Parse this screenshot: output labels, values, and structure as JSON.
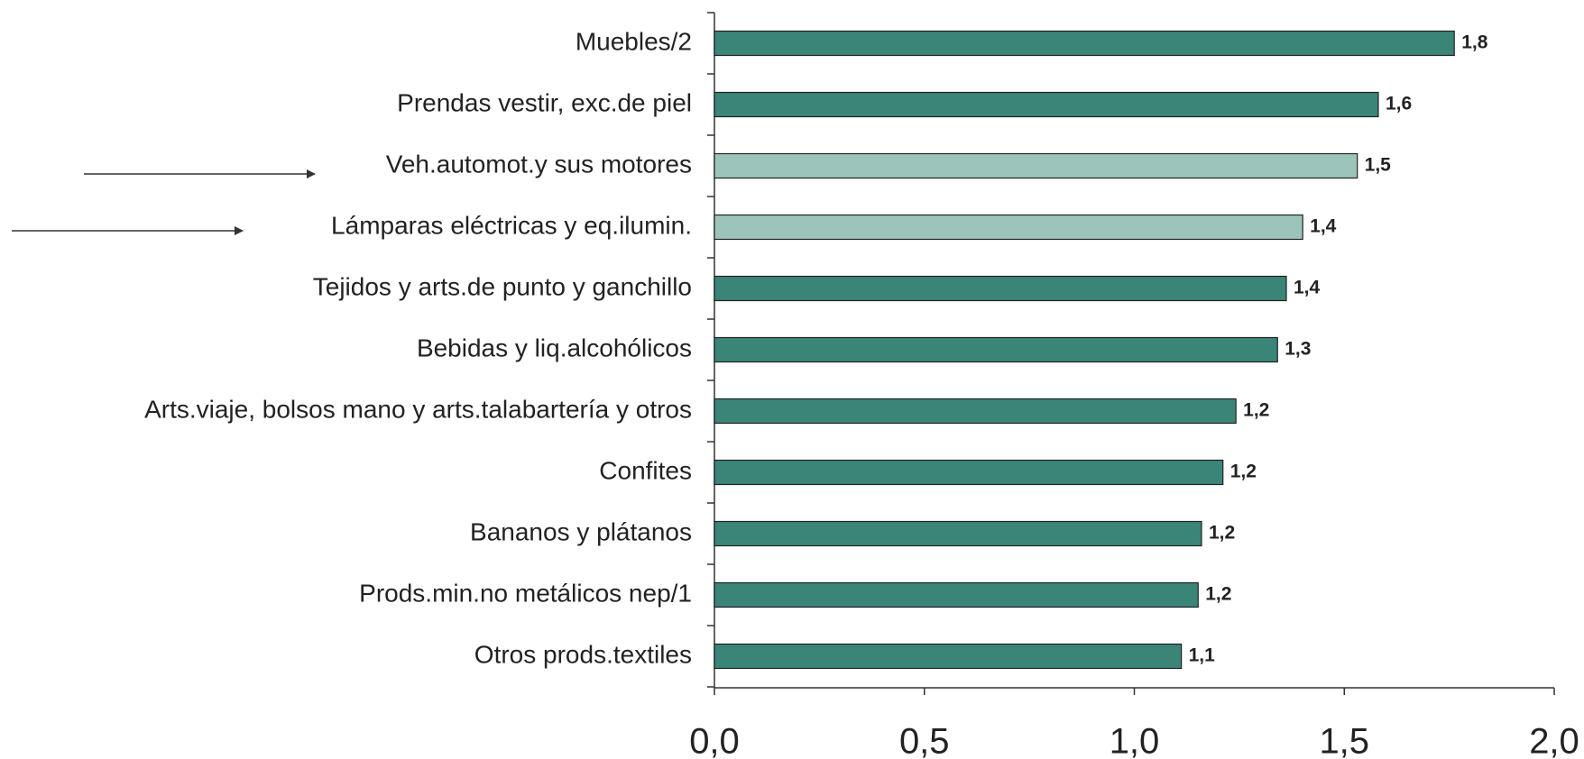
{
  "chart_data": {
    "type": "barh",
    "categories": [
      "Muebles/2",
      "Prendas vestir, exc.de piel",
      "Veh.automot.y sus motores",
      "Lámparas eléctricas y eq.ilumin.",
      "Tejidos y arts.de punto y ganchillo",
      "Bebidas y liq.alcohólicos",
      "Arts.viaje, bolsos mano y arts.talabartería y otros",
      "Confites",
      "Bananos y plátanos",
      "Prods.min.no metálicos nep/1",
      "Otros prods.textiles"
    ],
    "values": [
      1.762,
      1.581,
      1.531,
      1.401,
      1.362,
      1.341,
      1.242,
      1.211,
      1.16,
      1.152,
      1.112
    ],
    "value_labels": [
      "1,8",
      "1,6",
      "1,5",
      "1,4",
      "1,4",
      "1,3",
      "1,2",
      "1,2",
      "1,2",
      "1,2",
      "1,1"
    ],
    "colors": [
      "#3a8577",
      "#3a8577",
      "#9cc4ba",
      "#9cc4ba",
      "#3a8577",
      "#3a8577",
      "#3a8577",
      "#3a8577",
      "#3a8577",
      "#3a8577",
      "#3a8577"
    ],
    "xlim": [
      0,
      2
    ],
    "xticks": [
      {
        "value": 0,
        "label": "0,0"
      },
      {
        "value": 0.5,
        "label": "0,5"
      },
      {
        "value": 1,
        "label": "1,0"
      },
      {
        "value": 1.5,
        "label": "1,5"
      },
      {
        "value": 2,
        "label": "2,0"
      }
    ]
  }
}
